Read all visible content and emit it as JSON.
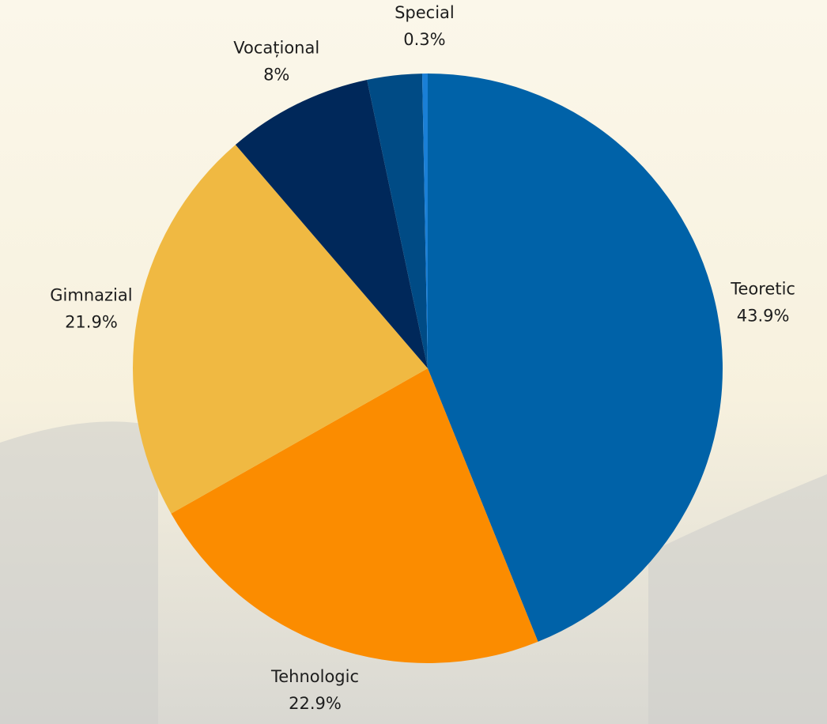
{
  "chart_data": {
    "type": "pie",
    "categories": [
      "Teoretic",
      "Tehnologic",
      "Gimnazial",
      "Vocațional",
      null,
      "Special"
    ],
    "values": [
      43.9,
      22.9,
      21.9,
      8,
      3,
      0.3
    ],
    "value_labels": [
      "43.9%",
      "22.9%",
      "21.9%",
      "8%",
      null,
      "0.3%"
    ],
    "colors": [
      "#0062a8",
      "#fb8c00",
      "#f0b942",
      "#00285a",
      "#004b85",
      "#1a7fd6"
    ]
  }
}
